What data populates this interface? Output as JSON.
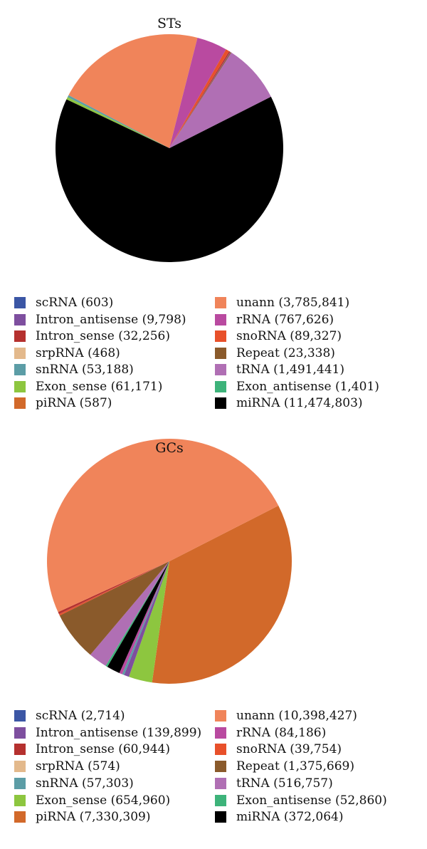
{
  "categories": [
    "scRNA",
    "Intron_antisense",
    "Intron_sense",
    "srpRNA",
    "snRNA",
    "Exon_sense",
    "piRNA",
    "unann",
    "rRNA",
    "snoRNA",
    "Repeat",
    "tRNA",
    "Exon_antisense",
    "miRNA"
  ],
  "colors": {
    "scRNA": "#3b56a5",
    "Intron_antisense": "#7e4f9f",
    "Intron_sense": "#b5312f",
    "srpRNA": "#e3b98c",
    "snRNA": "#5c9da6",
    "Exon_sense": "#8dc63f",
    "piRNA": "#d2692a",
    "unann": "#f0845a",
    "rRNA": "#b94aa0",
    "snoRNA": "#e8502a",
    "Repeat": "#8a5a2b",
    "tRNA": "#b06fb4",
    "Exon_antisense": "#3db37a",
    "miRNA": "#000000"
  },
  "chart_data": [
    {
      "type": "pie",
      "title": "STs",
      "values": [
        603,
        9798,
        32256,
        468,
        53188,
        61171,
        587,
        3785841,
        767626,
        89327,
        23338,
        1491441,
        1401,
        11474803
      ],
      "legend": [
        {
          "key": "scRNA",
          "label": "scRNA (603)"
        },
        {
          "key": "Intron_antisense",
          "label": "Intron_antisense (9,798)"
        },
        {
          "key": "Intron_sense",
          "label": "Intron_sense (32,256)"
        },
        {
          "key": "srpRNA",
          "label": "srpRNA (468)"
        },
        {
          "key": "snRNA",
          "label": "snRNA (53,188)"
        },
        {
          "key": "Exon_sense",
          "label": "Exon_sense (61,171)"
        },
        {
          "key": "piRNA",
          "label": "piRNA (587)"
        },
        {
          "key": "unann",
          "label": "unann (3,785,841)"
        },
        {
          "key": "rRNA",
          "label": "rRNA (767,626)"
        },
        {
          "key": "snoRNA",
          "label": "snoRNA (89,327)"
        },
        {
          "key": "Repeat",
          "label": "Repeat (23,338)"
        },
        {
          "key": "tRNA",
          "label": "tRNA (1,491,441)"
        },
        {
          "key": "Exon_antisense",
          "label": "Exon_antisense (1,401)"
        },
        {
          "key": "miRNA",
          "label": "miRNA (11,474,803)"
        }
      ]
    },
    {
      "type": "pie",
      "title": "GCs",
      "values": [
        2714,
        139899,
        60944,
        574,
        57303,
        654960,
        7330309,
        10398427,
        84186,
        39754,
        1375669,
        516757,
        52860,
        372064
      ],
      "legend": [
        {
          "key": "scRNA",
          "label": "scRNA (2,714)"
        },
        {
          "key": "Intron_antisense",
          "label": "Intron_antisense (139,899)"
        },
        {
          "key": "Intron_sense",
          "label": "Intron_sense (60,944)"
        },
        {
          "key": "srpRNA",
          "label": "srpRNA (574)"
        },
        {
          "key": "snRNA",
          "label": "snRNA (57,303)"
        },
        {
          "key": "Exon_sense",
          "label": "Exon_sense (654,960)"
        },
        {
          "key": "piRNA",
          "label": "piRNA (7,330,309)"
        },
        {
          "key": "unann",
          "label": "unann (10,398,427)"
        },
        {
          "key": "rRNA",
          "label": "rRNA (84,186)"
        },
        {
          "key": "snoRNA",
          "label": "snoRNA (39,754)"
        },
        {
          "key": "Repeat",
          "label": "Repeat (1,375,669)"
        },
        {
          "key": "tRNA",
          "label": "tRNA (516,757)"
        },
        {
          "key": "Exon_antisense",
          "label": "Exon_antisense (52,860)"
        },
        {
          "key": "miRNA",
          "label": "miRNA (372,064)"
        }
      ]
    }
  ]
}
